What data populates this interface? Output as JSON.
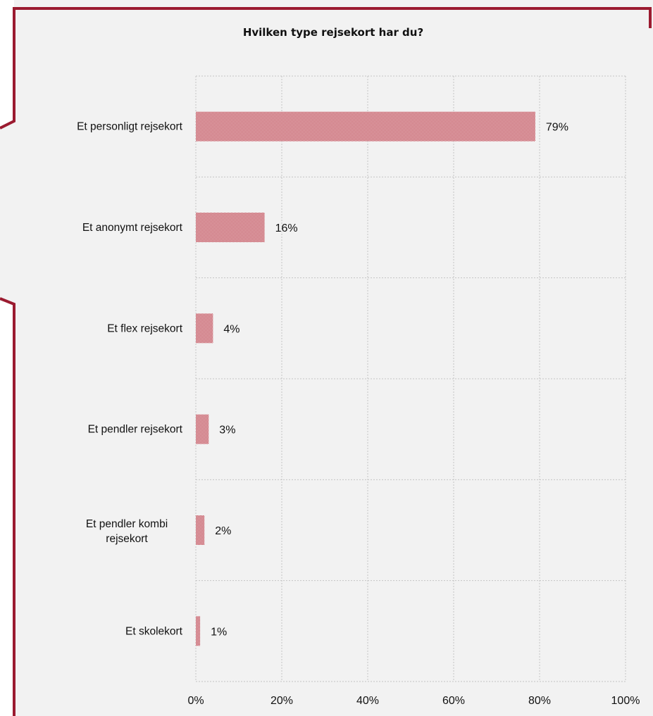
{
  "colors": {
    "background": "#f2f2f2",
    "frame": "#9b1b30",
    "bar": "#b5303f",
    "grid": "#c4c4c4"
  },
  "chart_data": {
    "type": "bar",
    "orientation": "horizontal",
    "title": "Hvilken type rejsekort har du?",
    "categories": [
      "Et personligt rejsekort",
      "Et anonymt rejsekort",
      "Et flex rejsekort",
      "Et pendler rejsekort",
      "Et pendler kombi rejsekort",
      "Et skolekort"
    ],
    "values": [
      79,
      16,
      4,
      3,
      2,
      1
    ],
    "data_labels": [
      "79%",
      "16%",
      "4%",
      "3%",
      "2%",
      "1%"
    ],
    "xticks": [
      "0%",
      "20%",
      "40%",
      "60%",
      "80%",
      "100%"
    ],
    "xlim": [
      0,
      100
    ],
    "grid": true,
    "legend": "none"
  }
}
